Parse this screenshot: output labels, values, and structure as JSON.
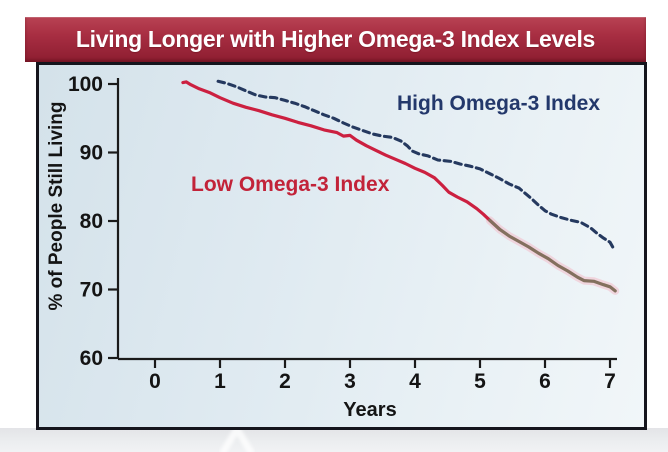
{
  "page": {
    "title": "Living Longer with Higher Omega-3 Index Levels"
  },
  "colors": {
    "banner_red_top": "#b84253",
    "banner_red_bottom": "#8d1d30",
    "banner_text": "#ffffff",
    "plot_background": "#dde9f0",
    "frame_border": "#15151d",
    "axis": "#1a1a1a",
    "low_series_red": "#cc2040",
    "low_series_tail_brown": "#83705e",
    "low_series_tail_glow": "#f2bcc9",
    "high_series_navy": "#25395f"
  },
  "chart_data": {
    "type": "line",
    "title": "Living Longer with Higher Omega-3 Index Levels",
    "xlabel": "Years",
    "ylabel": "% of People Still Living",
    "xlim": [
      0,
      7
    ],
    "ylim": [
      60,
      100
    ],
    "x_ticks": [
      0,
      1,
      2,
      3,
      4,
      5,
      6,
      7
    ],
    "y_ticks": [
      100,
      90,
      80,
      70,
      60
    ],
    "grid": false,
    "legend_position": "inline-annotations",
    "series": [
      {
        "name": "High Omega-3 Index",
        "style": "dashed",
        "color": "#25395f",
        "label_color": "#23386b",
        "points": [
          [
            0.97,
            100.4
          ],
          [
            1.1,
            100.1
          ],
          [
            1.25,
            99.6
          ],
          [
            1.4,
            99.0
          ],
          [
            1.55,
            98.4
          ],
          [
            1.7,
            98.1
          ],
          [
            1.85,
            98.0
          ],
          [
            2.0,
            97.6
          ],
          [
            2.15,
            97.2
          ],
          [
            2.3,
            96.7
          ],
          [
            2.45,
            96.1
          ],
          [
            2.6,
            95.5
          ],
          [
            2.75,
            95.0
          ],
          [
            2.9,
            94.3
          ],
          [
            3.05,
            93.7
          ],
          [
            3.2,
            93.2
          ],
          [
            3.35,
            92.7
          ],
          [
            3.5,
            92.4
          ],
          [
            3.65,
            92.2
          ],
          [
            3.78,
            91.7
          ],
          [
            3.88,
            91.0
          ],
          [
            3.96,
            90.2
          ],
          [
            4.06,
            89.8
          ],
          [
            4.2,
            89.5
          ],
          [
            4.35,
            88.9
          ],
          [
            4.55,
            88.7
          ],
          [
            4.7,
            88.3
          ],
          [
            4.85,
            88.0
          ],
          [
            5.0,
            87.6
          ],
          [
            5.15,
            86.9
          ],
          [
            5.3,
            86.2
          ],
          [
            5.45,
            85.4
          ],
          [
            5.6,
            84.8
          ],
          [
            5.7,
            84.0
          ],
          [
            5.8,
            83.2
          ],
          [
            5.9,
            82.3
          ],
          [
            6.0,
            81.5
          ],
          [
            6.1,
            81.0
          ],
          [
            6.25,
            80.5
          ],
          [
            6.4,
            80.1
          ],
          [
            6.55,
            79.8
          ],
          [
            6.7,
            79.0
          ],
          [
            6.8,
            78.2
          ],
          [
            6.9,
            77.5
          ],
          [
            7.0,
            76.9
          ],
          [
            7.06,
            75.9
          ]
        ]
      },
      {
        "name": "Low Omega-3 Index",
        "style": "solid",
        "color": "#cc2040",
        "label_color": "#c22339",
        "tail_color": "#83705e",
        "tail_glow_color": "#f2bcc9",
        "tail_start_year": 5.3,
        "points": [
          [
            0.43,
            100.2
          ],
          [
            0.48,
            100.3
          ],
          [
            0.55,
            99.9
          ],
          [
            0.68,
            99.3
          ],
          [
            0.85,
            98.7
          ],
          [
            1.0,
            98.0
          ],
          [
            1.2,
            97.2
          ],
          [
            1.4,
            96.6
          ],
          [
            1.6,
            96.1
          ],
          [
            1.8,
            95.5
          ],
          [
            2.0,
            95.0
          ],
          [
            2.2,
            94.4
          ],
          [
            2.4,
            93.9
          ],
          [
            2.6,
            93.3
          ],
          [
            2.8,
            92.9
          ],
          [
            2.9,
            92.4
          ],
          [
            3.0,
            92.5
          ],
          [
            3.1,
            91.8
          ],
          [
            3.25,
            91.0
          ],
          [
            3.4,
            90.3
          ],
          [
            3.55,
            89.6
          ],
          [
            3.7,
            89.0
          ],
          [
            3.85,
            88.4
          ],
          [
            4.0,
            87.7
          ],
          [
            4.15,
            87.1
          ],
          [
            4.3,
            86.3
          ],
          [
            4.42,
            85.2
          ],
          [
            4.52,
            84.2
          ],
          [
            4.65,
            83.5
          ],
          [
            4.8,
            82.8
          ],
          [
            4.95,
            81.8
          ],
          [
            5.05,
            81.0
          ],
          [
            5.15,
            80.1
          ],
          [
            5.3,
            78.8
          ],
          [
            5.45,
            77.8
          ],
          [
            5.6,
            77.0
          ],
          [
            5.75,
            76.2
          ],
          [
            5.9,
            75.3
          ],
          [
            6.05,
            74.5
          ],
          [
            6.2,
            73.5
          ],
          [
            6.35,
            72.7
          ],
          [
            6.5,
            71.8
          ],
          [
            6.6,
            71.3
          ],
          [
            6.75,
            71.2
          ],
          [
            6.9,
            70.7
          ],
          [
            7.0,
            70.4
          ],
          [
            7.08,
            69.8
          ]
        ]
      }
    ]
  }
}
